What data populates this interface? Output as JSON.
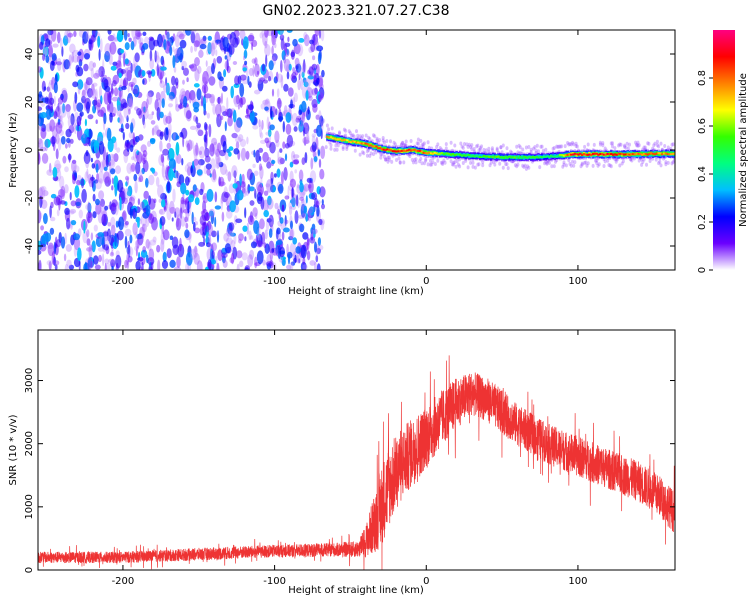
{
  "title": "GN02.2023.321.07.27.C38",
  "colors": {
    "snr_line": "#ee3333",
    "axis": "#000000",
    "background": "#ffffff"
  },
  "chart_data": [
    {
      "type": "heatmap",
      "xlabel": "Height of straight line (km)",
      "ylabel": "Frequency (Hz)",
      "xlim": [
        -256,
        164
      ],
      "ylim": [
        -50,
        50
      ],
      "x_ticks": [
        -200,
        -100,
        0,
        100
      ],
      "y_ticks": [
        -40,
        -20,
        0,
        20,
        40
      ],
      "colorbar": {
        "label": "Normalized spectral amplitude",
        "range": [
          0,
          1
        ],
        "ticks": [
          0,
          0.2,
          0.4,
          0.6,
          0.8
        ],
        "colormap": [
          "#ffffff",
          "#6a00ff",
          "#0000ff",
          "#00bfff",
          "#00ff80",
          "#33ff00",
          "#ffff00",
          "#ff8000",
          "#ff0000",
          "#ff0080"
        ]
      },
      "noise_region_x": [
        -256,
        -68
      ],
      "signal_track": {
        "x": [
          -66,
          -50,
          -40,
          -30,
          -20,
          -10,
          0,
          10,
          30,
          50,
          70,
          85,
          95,
          110,
          130,
          150,
          164
        ],
        "frequency": [
          5.5,
          3.5,
          2.5,
          0.5,
          -0.5,
          0,
          -1.2,
          -1.5,
          -2.5,
          -3,
          -3,
          -2.5,
          -1.8,
          -1.8,
          -1.8,
          -1.6,
          -1.5
        ],
        "peak_amplitude": [
          0.8,
          0.75,
          0.85,
          0.9,
          0.95,
          0.9,
          0.85,
          0.6,
          0.55,
          0.6,
          0.55,
          0.5,
          0.95,
          0.95,
          0.9,
          0.85,
          0.8
        ]
      }
    },
    {
      "type": "line",
      "xlabel": "Height of straight line (km)",
      "ylabel": "SNR (10 * v/v)",
      "xlim": [
        -256,
        164
      ],
      "ylim": [
        0,
        3800
      ],
      "x_ticks": [
        -200,
        -100,
        0,
        100
      ],
      "y_ticks": [
        0,
        1000,
        2000,
        3000
      ],
      "series": [
        {
          "envelope_x": [
            -256,
            -200,
            -150,
            -100,
            -60,
            -45,
            -40,
            -35,
            -30,
            -25,
            -20,
            -10,
            0,
            10,
            20,
            30,
            40,
            50,
            60,
            80,
            100,
            120,
            140,
            155,
            164
          ],
          "envelope_y": [
            200,
            200,
            250,
            300,
            320,
            330,
            450,
            700,
            1000,
            1300,
            1550,
            1850,
            2100,
            2400,
            2650,
            2800,
            2700,
            2500,
            2300,
            2000,
            1800,
            1600,
            1400,
            1150,
            900
          ],
          "noise_amplitude": [
            90,
            90,
            100,
            100,
            110,
            130,
            250,
            450,
            650,
            650,
            600,
            550,
            500,
            450,
            400,
            350,
            350,
            350,
            330,
            320,
            320,
            320,
            320,
            330,
            340
          ]
        }
      ]
    }
  ]
}
